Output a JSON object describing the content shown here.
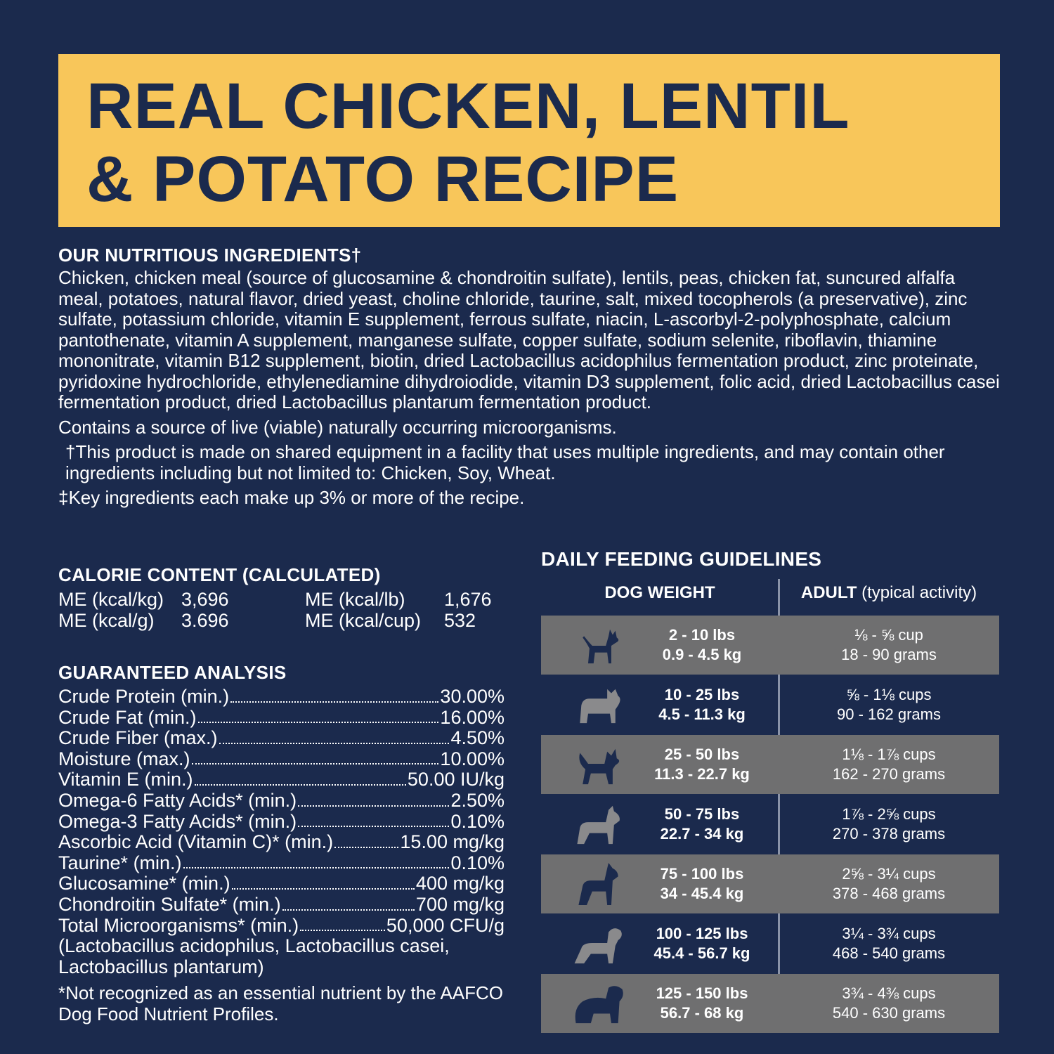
{
  "title": {
    "line1": "REAL CHICKEN, LENTIL",
    "line2": "& POTATO RECIPE"
  },
  "ingredients": {
    "heading": "OUR NUTRITIOUS INGREDIENTS†",
    "text": "Chicken, chicken meal (source of glucosamine & chondroitin sulfate), lentils, peas, chicken fat, suncured alfalfa meal, potatoes, natural flavor, dried yeast, choline chloride, taurine, salt, mixed tocopherols (a preservative), zinc sulfate, potassium chloride, vitamin E supplement, ferrous sulfate, niacin, L-ascorbyl-2-polyphosphate, calcium pantothenate, vitamin A supplement, manganese sulfate, copper sulfate, sodium selenite, riboflavin, thiamine mononitrate,  vitamin B12 supplement,  biotin, dried Lactobacillus acidophilus fermentation product, zinc proteinate, pyridoxine hydrochloride, ethylenediamine dihydroiodide, vitamin D3 supplement, folic acid, dried Lactobacillus casei fermentation product, dried Lactobacillus plantarum fermentation product.",
    "live": "Contains a source of live (viable) naturally occurring microorganisms.",
    "shared": "†This product is made on shared equipment in a facility that uses multiple ingredients, and may contain other ingredients including but not limited to: Chicken, Soy, Wheat.",
    "key": "‡Key ingredients each make up 3% or more of the recipe."
  },
  "calorie": {
    "heading": "CALORIE CONTENT (CALCULATED)",
    "items": [
      {
        "label": "ME (kcal/kg)",
        "value": "3,696"
      },
      {
        "label": "ME (kcal/lb)",
        "value": "1,676"
      },
      {
        "label": "ME (kcal/g)",
        "value": "3.696"
      },
      {
        "label": "ME (kcal/cup)",
        "value": "532"
      }
    ]
  },
  "analysis": {
    "heading": "GUARANTEED ANALYSIS",
    "rows": [
      {
        "label": "Crude Protein (min.)",
        "value": "30.00%"
      },
      {
        "label": "Crude Fat (min.)",
        "value": "16.00%"
      },
      {
        "label": "Crude Fiber (max.)",
        "value": "4.50%"
      },
      {
        "label": "Moisture (max.)",
        "value": "10.00%"
      },
      {
        "label": "Vitamin E (min.)",
        "value": "50.00 IU/kg"
      },
      {
        "label": "Omega-6 Fatty Acids* (min.)",
        "value": "2.50%"
      },
      {
        "label": "Omega-3 Fatty Acids* (min.)",
        "value": "0.10%"
      },
      {
        "label": "Ascorbic Acid (Vitamin C)* (min.)",
        "value": "15.00 mg/kg"
      },
      {
        "label": "Taurine* (min.)",
        "value": "0.10%"
      },
      {
        "label": "Glucosamine* (min.)",
        "value": "400 mg/kg"
      },
      {
        "label": "Chondroitin Sulfate* (min.)",
        "value": "700 mg/kg"
      },
      {
        "label": "Total Microorganisms* (min.)",
        "value": "50,000 CFU/g"
      }
    ],
    "extra": "(Lactobacillus acidophilus, Lactobacillus casei, Lactobacillus plantarum)",
    "footnote": "*Not recognized as an essential nutrient by the AAFCO Dog Food Nutrient Profiles."
  },
  "feeding": {
    "heading": "DAILY FEEDING GUIDELINES",
    "col1": "DOG WEIGHT",
    "col2_bold": "ADULT",
    "col2_rest": " (typical activity)",
    "colors": {
      "gray_row": "#6f6f70",
      "navy": "#1b2a4d",
      "dog_on_navy": "#8a8a8c"
    },
    "rows": [
      {
        "lbs": "2 - 10 lbs",
        "kg": "0.9 - 4.5 kg",
        "cups": "⅛ - ⅝ cup",
        "grams": "18 - 90 grams",
        "icon": "chihuahua-icon"
      },
      {
        "lbs": "10 - 25 lbs",
        "kg": "4.5 - 11.3 kg",
        "cups": "⅝ - 1⅛ cups",
        "grams": "90 - 162 grams",
        "icon": "french-bulldog-icon"
      },
      {
        "lbs": "25 - 50 lbs",
        "kg": "11.3 - 22.7 kg",
        "cups": "1⅛ - 1⅞ cups",
        "grams": "162 - 270 grams",
        "icon": "spitz-dog-icon"
      },
      {
        "lbs": "50 - 75 lbs",
        "kg": "22.7 - 34 kg",
        "cups": "1⅞ - 2⅝ cups",
        "grams": "270 - 378 grams",
        "icon": "terrier-dog-icon"
      },
      {
        "lbs": "75 - 100 lbs",
        "kg": "34 - 45.4 kg",
        "cups": "2⅝ - 3¼ cups",
        "grams": "378 - 468 grams",
        "icon": "great-dane-icon"
      },
      {
        "lbs": "100 - 125 lbs",
        "kg": "45.4 - 56.7 kg",
        "cups": "3¼ - 3¾ cups",
        "grams": "468 - 540 grams",
        "icon": "retriever-dog-icon"
      },
      {
        "lbs": "125 - 150 lbs",
        "kg": "56.7 - 68 kg",
        "cups": "3¾ - 4⅜ cups",
        "grams": "540 - 630 grams",
        "icon": "newfoundland-dog-icon"
      }
    ]
  }
}
